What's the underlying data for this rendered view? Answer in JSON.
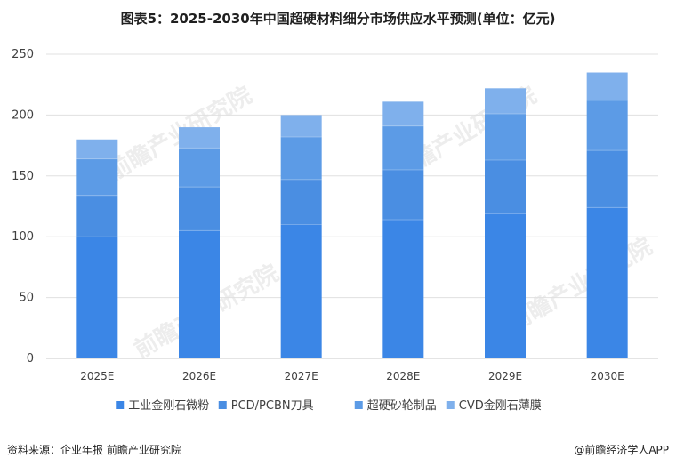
{
  "title": "图表5：2025-2030年中国超硬材料细分市场供应水平预测(单位：亿元)",
  "source": "资料来源：企业年报 前瞻产业研究院",
  "brand": "@前瞻经济学人APP",
  "watermark": "前瞻产业研究院",
  "chart_data": {
    "type": "bar",
    "stacked": true,
    "categories": [
      "2025E",
      "2026E",
      "2027E",
      "2028E",
      "2029E",
      "2030E"
    ],
    "ylim": [
      0,
      250
    ],
    "yticks": [
      0,
      50,
      100,
      150,
      200,
      250
    ],
    "grid": true,
    "legend_position": "bottom",
    "series": [
      {
        "name": "工业金刚石微粉",
        "color": "#3b86e6",
        "values": [
          100,
          105,
          110,
          114,
          119,
          124
        ]
      },
      {
        "name": "PCD/PCBN刀具",
        "color": "#4a8ee2",
        "values": [
          34,
          36,
          37,
          41,
          44,
          47
        ]
      },
      {
        "name": "超硬砂轮制品",
        "color": "#5c9be6",
        "values": [
          30,
          32,
          35,
          36,
          38,
          41
        ]
      },
      {
        "name": "CVD金刚石薄膜",
        "color": "#7fb0ec",
        "values": [
          16,
          17,
          18,
          20,
          21,
          23
        ]
      }
    ]
  }
}
